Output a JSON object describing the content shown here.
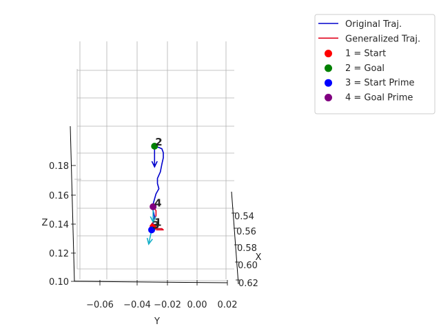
{
  "chart_data": {
    "type": "line3d",
    "title": "",
    "axes": {
      "x": {
        "label": "X",
        "ticks": [
          "0.54",
          "0.56",
          "0.58",
          "0.60",
          "0.62"
        ]
      },
      "y": {
        "label": "Y",
        "ticks": [
          "−0.06",
          "−0.04",
          "−0.02",
          "0.00",
          "0.02"
        ]
      },
      "z": {
        "label": "Z",
        "ticks": [
          "0.10",
          "0.12",
          "0.14",
          "0.16",
          "0.18"
        ]
      }
    },
    "grid": true,
    "legend": {
      "placement": "top-right",
      "entries": [
        {
          "label": "Original Traj.",
          "kind": "line",
          "color": "#0000cc"
        },
        {
          "label": "Generalized Traj.",
          "kind": "line",
          "color": "#e0001b"
        },
        {
          "label": "1 = Start",
          "kind": "marker",
          "color": "#ff0000"
        },
        {
          "label": "2 = Goal",
          "kind": "marker",
          "color": "#008000"
        },
        {
          "label": "3 = Start Prime",
          "kind": "marker",
          "color": "#0000ff"
        },
        {
          "label": "4 = Goal Prime",
          "kind": "marker",
          "color": "#800080"
        }
      ]
    },
    "point_labels": [
      "1",
      "2",
      "3",
      "4"
    ],
    "points": [
      {
        "label": "1",
        "name": "Start",
        "x": 0.58,
        "y": -0.026,
        "z": 0.142,
        "color": "#ff0000"
      },
      {
        "label": "2",
        "name": "Goal",
        "x": 0.575,
        "y": -0.025,
        "z": 0.205,
        "color": "#008000"
      },
      {
        "label": "3",
        "name": "Start Prime",
        "x": 0.58,
        "y": -0.027,
        "z": 0.14,
        "color": "#0000ff"
      },
      {
        "label": "4",
        "name": "Goal Prime",
        "x": 0.58,
        "y": -0.026,
        "z": 0.158,
        "color": "#800080"
      }
    ],
    "series": [
      {
        "name": "Original Traj.",
        "color": "#0000cc",
        "points": [
          {
            "y": -0.025,
            "z": 0.205
          },
          {
            "y": -0.022,
            "z": 0.204
          },
          {
            "y": -0.02,
            "z": 0.203
          },
          {
            "y": -0.019,
            "z": 0.2
          },
          {
            "y": -0.019,
            "z": 0.196
          },
          {
            "y": -0.02,
            "z": 0.191
          },
          {
            "y": -0.021,
            "z": 0.185
          },
          {
            "y": -0.023,
            "z": 0.18
          },
          {
            "y": -0.023,
            "z": 0.176
          },
          {
            "y": -0.022,
            "z": 0.172
          },
          {
            "y": -0.024,
            "z": 0.168
          },
          {
            "y": -0.025,
            "z": 0.164
          },
          {
            "y": -0.026,
            "z": 0.16
          },
          {
            "y": -0.026,
            "z": 0.155
          },
          {
            "y": -0.025,
            "z": 0.15
          },
          {
            "y": -0.026,
            "z": 0.146
          },
          {
            "y": -0.026,
            "z": 0.142
          }
        ]
      },
      {
        "name": "Generalized Traj.",
        "color": "#e0001b",
        "points": [
          {
            "y": -0.026,
            "z": 0.158
          },
          {
            "y": -0.024,
            "z": 0.155
          },
          {
            "y": -0.024,
            "z": 0.151
          },
          {
            "y": -0.026,
            "z": 0.146
          },
          {
            "y": -0.028,
            "z": 0.143
          },
          {
            "y": -0.026,
            "z": 0.141
          },
          {
            "y": -0.02,
            "z": 0.141
          },
          {
            "y": -0.019,
            "z": 0.14
          },
          {
            "y": -0.024,
            "z": 0.14
          }
        ]
      }
    ],
    "arrows": [
      {
        "color": "#0000cc",
        "from": {
          "y": -0.025,
          "z": 0.205
        },
        "to": {
          "y": -0.025,
          "z": 0.189
        }
      },
      {
        "color": "#17b0c8",
        "from": {
          "y": -0.026,
          "z": 0.158
        },
        "to": {
          "y": -0.026,
          "z": 0.146
        }
      },
      {
        "color": "#17b0c8",
        "from": {
          "y": -0.027,
          "z": 0.14
        },
        "to": {
          "y": -0.029,
          "z": 0.129
        }
      }
    ]
  }
}
